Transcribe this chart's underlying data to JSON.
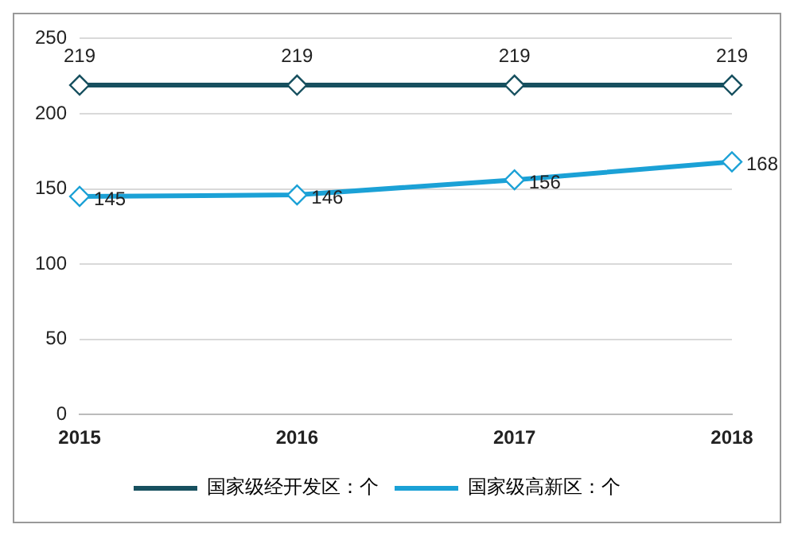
{
  "chart_data": {
    "type": "line",
    "categories": [
      "2015",
      "2016",
      "2017",
      "2018"
    ],
    "series": [
      {
        "name": "国家级经开发区：个",
        "color": "#17505f",
        "values": [
          219,
          219,
          219,
          219
        ]
      },
      {
        "name": "国家级高新区：个",
        "color": "#1ba1d6",
        "values": [
          145,
          146,
          156,
          168
        ]
      }
    ],
    "ylim": [
      0,
      250
    ],
    "yticks": [
      0,
      50,
      100,
      150,
      200,
      250
    ],
    "grid": "y",
    "legend": "bottom",
    "marker": "diamond",
    "data_labels": true
  }
}
